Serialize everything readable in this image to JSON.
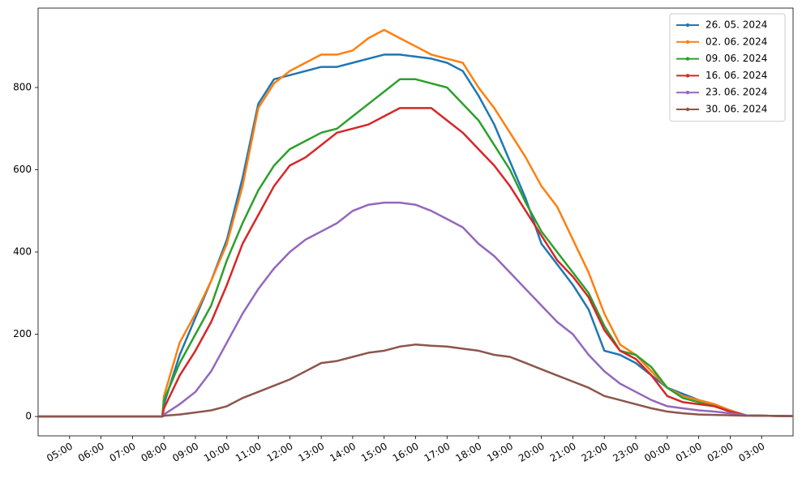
{
  "chart_data": {
    "type": "line",
    "x": [
      4,
      7.95,
      8,
      8.5,
      9,
      9.5,
      10,
      10.5,
      11,
      11.5,
      12,
      12.5,
      13,
      13.5,
      14,
      14.5,
      15,
      15.5,
      16,
      16.5,
      17,
      17.5,
      18,
      18.5,
      19,
      19.5,
      20,
      20.5,
      21,
      21.5,
      22,
      22.5,
      23,
      23.5,
      24,
      24.5,
      25,
      25.5,
      26,
      26.5,
      27,
      28
    ],
    "series": [
      {
        "name": "26. 05. 2024",
        "color": "#1f77b4",
        "values": [
          0,
          0,
          30,
          150,
          240,
          330,
          430,
          580,
          760,
          820,
          830,
          840,
          850,
          850,
          860,
          870,
          880,
          880,
          875,
          870,
          860,
          840,
          780,
          710,
          620,
          530,
          420,
          370,
          320,
          260,
          160,
          150,
          130,
          100,
          70,
          55,
          40,
          30,
          15,
          3,
          2,
          1
        ]
      },
      {
        "name": "02. 06. 2024",
        "color": "#ff7f0e",
        "values": [
          0,
          0,
          50,
          180,
          250,
          330,
          420,
          560,
          750,
          810,
          840,
          860,
          880,
          880,
          890,
          920,
          940,
          920,
          900,
          880,
          870,
          860,
          800,
          750,
          690,
          630,
          560,
          510,
          430,
          350,
          250,
          175,
          150,
          110,
          70,
          50,
          40,
          30,
          15,
          3,
          2,
          1
        ]
      },
      {
        "name": "09. 06. 2024",
        "color": "#2ca02c",
        "values": [
          0,
          0,
          40,
          130,
          200,
          270,
          380,
          470,
          550,
          610,
          650,
          670,
          690,
          700,
          730,
          760,
          790,
          820,
          820,
          810,
          800,
          760,
          720,
          660,
          600,
          520,
          450,
          400,
          350,
          300,
          220,
          160,
          150,
          120,
          70,
          45,
          35,
          25,
          12,
          3,
          2,
          1
        ]
      },
      {
        "name": "16. 06. 2024",
        "color": "#d62728",
        "values": [
          0,
          0,
          20,
          100,
          160,
          230,
          320,
          420,
          490,
          560,
          610,
          630,
          660,
          690,
          700,
          710,
          730,
          750,
          750,
          750,
          720,
          690,
          650,
          610,
          560,
          500,
          440,
          380,
          340,
          290,
          210,
          160,
          140,
          100,
          50,
          35,
          30,
          25,
          12,
          3,
          2,
          1
        ]
      },
      {
        "name": "23. 06. 2024",
        "color": "#9467bd",
        "values": [
          0,
          0,
          5,
          30,
          60,
          110,
          180,
          250,
          310,
          360,
          400,
          430,
          450,
          470,
          500,
          515,
          520,
          520,
          515,
          500,
          480,
          460,
          420,
          390,
          350,
          310,
          270,
          230,
          200,
          150,
          110,
          80,
          60,
          40,
          25,
          20,
          15,
          12,
          8,
          3,
          2,
          1
        ]
      },
      {
        "name": "30. 06. 2024",
        "color": "#8c564b",
        "values": [
          0,
          0,
          2,
          5,
          10,
          15,
          25,
          45,
          60,
          75,
          90,
          110,
          130,
          135,
          145,
          155,
          160,
          170,
          175,
          172,
          170,
          165,
          160,
          150,
          145,
          130,
          115,
          100,
          85,
          70,
          50,
          40,
          30,
          20,
          12,
          8,
          5,
          4,
          3,
          2,
          2,
          1
        ]
      }
    ],
    "xlim": [
      4,
      28
    ],
    "xticks": [
      {
        "value": 5,
        "label": "05:00"
      },
      {
        "value": 6,
        "label": "06:00"
      },
      {
        "value": 7,
        "label": "07:00"
      },
      {
        "value": 8,
        "label": "08:00"
      },
      {
        "value": 9,
        "label": "09:00"
      },
      {
        "value": 10,
        "label": "10:00"
      },
      {
        "value": 11,
        "label": "11:00"
      },
      {
        "value": 12,
        "label": "12:00"
      },
      {
        "value": 13,
        "label": "13:00"
      },
      {
        "value": 14,
        "label": "14:00"
      },
      {
        "value": 15,
        "label": "15:00"
      },
      {
        "value": 16,
        "label": "16:00"
      },
      {
        "value": 17,
        "label": "17:00"
      },
      {
        "value": 18,
        "label": "18:00"
      },
      {
        "value": 19,
        "label": "19:00"
      },
      {
        "value": 20,
        "label": "20:00"
      },
      {
        "value": 21,
        "label": "21:00"
      },
      {
        "value": 22,
        "label": "22:00"
      },
      {
        "value": 23,
        "label": "23:00"
      },
      {
        "value": 24,
        "label": "00:00"
      },
      {
        "value": 25,
        "label": "01:00"
      },
      {
        "value": 26,
        "label": "02:00"
      },
      {
        "value": 27,
        "label": "03:00"
      }
    ],
    "ylim": [
      -47,
      993
    ],
    "yticks": [
      0,
      200,
      400,
      600,
      800
    ],
    "grid": false,
    "legend": "upper right"
  }
}
